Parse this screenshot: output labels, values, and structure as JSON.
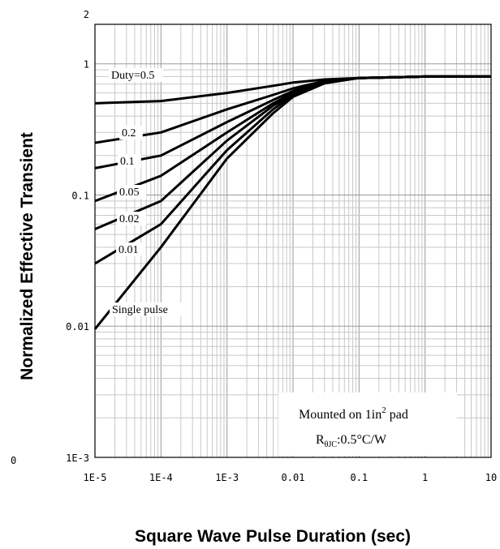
{
  "chart_data": {
    "type": "line",
    "xlabel": "Square Wave Pulse Duration (sec)",
    "ylabel": "Normalized Effective Transient",
    "x_scale": "log",
    "y_scale": "log",
    "xlim": [
      1e-05,
      10
    ],
    "ylim": [
      0.001,
      2
    ],
    "grid": true,
    "x_ticks": [
      {
        "value": 1e-05,
        "label": "1E-5"
      },
      {
        "value": 0.0001,
        "label": "1E-4"
      },
      {
        "value": 0.001,
        "label": "1E-3"
      },
      {
        "value": 0.01,
        "label": "0.01"
      },
      {
        "value": 0.1,
        "label": "0.1"
      },
      {
        "value": 1,
        "label": "1"
      },
      {
        "value": 10,
        "label": "10"
      }
    ],
    "y_ticks": [
      {
        "value": 0.001,
        "label": "1E-3"
      },
      {
        "value": 0.01,
        "label": "0.01"
      },
      {
        "value": 0.1,
        "label": "0.1"
      },
      {
        "value": 1,
        "label": "1"
      },
      {
        "value": 2,
        "label": "2"
      }
    ],
    "stray_label": "0",
    "series": [
      {
        "name": "Duty=0.5",
        "x": [
          1e-05,
          0.0001,
          0.001,
          0.005,
          0.01,
          0.03,
          0.1,
          1,
          10
        ],
        "y": [
          0.5,
          0.52,
          0.6,
          0.68,
          0.72,
          0.76,
          0.78,
          0.8,
          0.8
        ]
      },
      {
        "name": "0.2",
        "x": [
          1e-05,
          0.0001,
          0.001,
          0.005,
          0.01,
          0.03,
          0.1,
          1,
          10
        ],
        "y": [
          0.25,
          0.3,
          0.45,
          0.58,
          0.65,
          0.74,
          0.78,
          0.8,
          0.8
        ]
      },
      {
        "name": "0.1",
        "x": [
          1e-05,
          0.0001,
          0.001,
          0.005,
          0.01,
          0.03,
          0.1,
          1,
          10
        ],
        "y": [
          0.16,
          0.2,
          0.36,
          0.53,
          0.62,
          0.73,
          0.78,
          0.8,
          0.8
        ]
      },
      {
        "name": "0.05",
        "x": [
          1e-05,
          0.0001,
          0.001,
          0.005,
          0.01,
          0.03,
          0.1,
          1,
          10
        ],
        "y": [
          0.09,
          0.14,
          0.3,
          0.5,
          0.6,
          0.72,
          0.78,
          0.8,
          0.8
        ]
      },
      {
        "name": "0.02",
        "x": [
          1e-05,
          0.0001,
          0.001,
          0.005,
          0.01,
          0.03,
          0.1,
          1,
          10
        ],
        "y": [
          0.055,
          0.09,
          0.26,
          0.48,
          0.59,
          0.72,
          0.78,
          0.8,
          0.8
        ]
      },
      {
        "name": "0.01",
        "x": [
          1e-05,
          0.0001,
          0.001,
          0.005,
          0.01,
          0.03,
          0.1,
          1,
          10
        ],
        "y": [
          0.03,
          0.06,
          0.22,
          0.45,
          0.58,
          0.72,
          0.78,
          0.8,
          0.8
        ]
      },
      {
        "name": "Single pulse",
        "x": [
          1e-05,
          0.0001,
          0.001,
          0.005,
          0.01,
          0.03,
          0.1,
          1,
          10
        ],
        "y": [
          0.0095,
          0.04,
          0.19,
          0.42,
          0.56,
          0.71,
          0.78,
          0.8,
          0.8
        ]
      }
    ],
    "annotation": {
      "line1_prefix": "Mounted on 1in",
      "line1_sup": "2",
      "line1_suffix": " pad",
      "line2_prefix": "R",
      "line2_sub": "θJC",
      "line2_suffix": ":0.5°C/W"
    }
  }
}
